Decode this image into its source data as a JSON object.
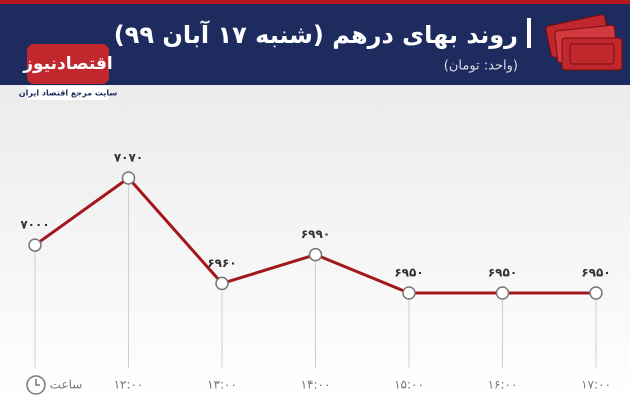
{
  "brand": {
    "name": "اقتصادنیوز",
    "tagline": "سایت مرجع اقتصاد ایران"
  },
  "chart_data": {
    "type": "line",
    "title": "روند بهای درهم (شنبه ۱۷ آبان ۹۹)",
    "subtitle": "(واحد: تومان)",
    "x_label": "ساعت",
    "categories": [
      null,
      "۱۲:۰۰",
      "۱۳:۰۰",
      "۱۴:۰۰",
      "۱۵:۰۰",
      "۱۶:۰۰",
      "۱۷:۰۰"
    ],
    "values": [
      7000,
      7070,
      6960,
      6990,
      6950,
      6950,
      6950
    ],
    "value_labels": [
      "۷۰۰۰",
      "۷۰۷۰",
      "۶۹۶۰",
      "۶۹۹۰",
      "۶۹۵۰",
      "۶۹۵۰",
      "۶۹۵۰"
    ],
    "color": "#a3161b"
  }
}
